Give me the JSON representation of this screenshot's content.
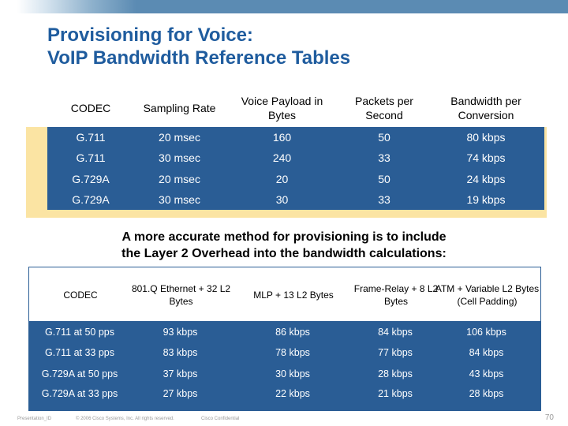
{
  "title": {
    "line1": "Provisioning for Voice:",
    "line2": "VoIP Bandwidth Reference Tables"
  },
  "colors": {
    "title": "#1f5c9e",
    "table_fill": "#2a5d95",
    "highlight": "#fbe4a3"
  },
  "table1": {
    "headers": [
      "CODEC",
      "Sampling Rate",
      "Voice Payload in Bytes",
      "Packets per Second",
      "Bandwidth per Conversion"
    ],
    "rows": [
      [
        "G.711",
        "20 msec",
        "160",
        "50",
        "80 kbps"
      ],
      [
        "G.711",
        "30 msec",
        "240",
        "33",
        "74 kbps"
      ],
      [
        "G.729A",
        "20 msec",
        "20",
        "50",
        "24 kbps"
      ],
      [
        "G.729A",
        "30 msec",
        "30",
        "33",
        "19 kbps"
      ]
    ]
  },
  "note": {
    "line1": "A more accurate method for provisioning is to include",
    "line2": "the Layer 2 Overhead into the bandwidth calculations:"
  },
  "table2": {
    "headers": [
      "CODEC",
      "801.Q Ethernet + 32 L2 Bytes",
      "MLP + 13 L2 Bytes",
      "Frame-Relay + 8 L2 Bytes",
      "ATM + Variable L2 Bytes (Cell Padding)"
    ],
    "rows": [
      [
        "G.711 at 50 pps",
        "93 kbps",
        "86 kbps",
        "84 kbps",
        "106 kbps"
      ],
      [
        "G.711 at 33 pps",
        "83 kbps",
        "78 kbps",
        "77 kbps",
        "84 kbps"
      ],
      [
        "G.729A at 50 pps",
        "37 kbps",
        "30 kbps",
        "28 kbps",
        "43 kbps"
      ],
      [
        "G.729A at 33 pps",
        "27 kbps",
        "22 kbps",
        "21 kbps",
        "28 kbps"
      ]
    ]
  },
  "footer": {
    "presentation_id": "Presentation_ID",
    "copyright": "© 2006 Cisco Systems, Inc. All rights reserved.",
    "confidential": "Cisco Confidential",
    "page_number": "70"
  }
}
